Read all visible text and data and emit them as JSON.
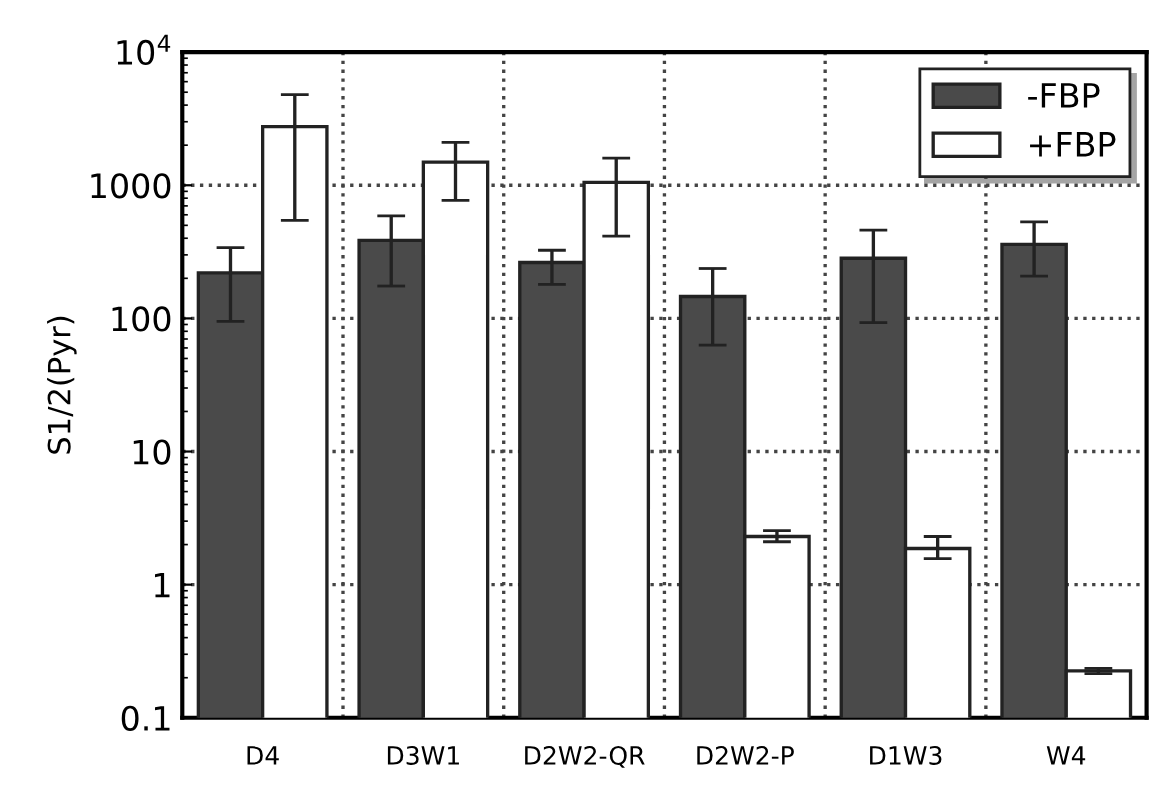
{
  "chart_data": {
    "type": "bar",
    "ylabel": "S1/2(Pyr)",
    "categories": [
      "D4",
      "D3W1",
      "D2W2-QR",
      "D2W2-P",
      "D1W3",
      "W4"
    ],
    "series": [
      {
        "name": "-FBP",
        "color": "#4a4a4a",
        "values": [
          220,
          385,
          263,
          146,
          283,
          360
        ],
        "errors": [
          [
            95,
            340
          ],
          [
            175,
            590
          ],
          [
            180,
            325
          ],
          [
            63,
            237
          ],
          [
            93,
            460
          ],
          [
            208,
            530
          ]
        ]
      },
      {
        "name": "+FBP",
        "color": "#ffffff",
        "values": [
          2760,
          1490,
          1050,
          2.3,
          1.87,
          0.225
        ],
        "errors": [
          [
            545,
            4800
          ],
          [
            770,
            2100
          ],
          [
            415,
            1600
          ],
          [
            2.1,
            2.55
          ],
          [
            1.57,
            2.3
          ],
          [
            0.215,
            0.235
          ]
        ]
      }
    ],
    "log": "y",
    "ylim": [
      0.1,
      10000
    ],
    "yticks": [
      0.1,
      1,
      10,
      100,
      1000,
      {
        "value": 10000,
        "label": "10$^{4}$"
      }
    ],
    "grid": true,
    "legend": "top right"
  }
}
